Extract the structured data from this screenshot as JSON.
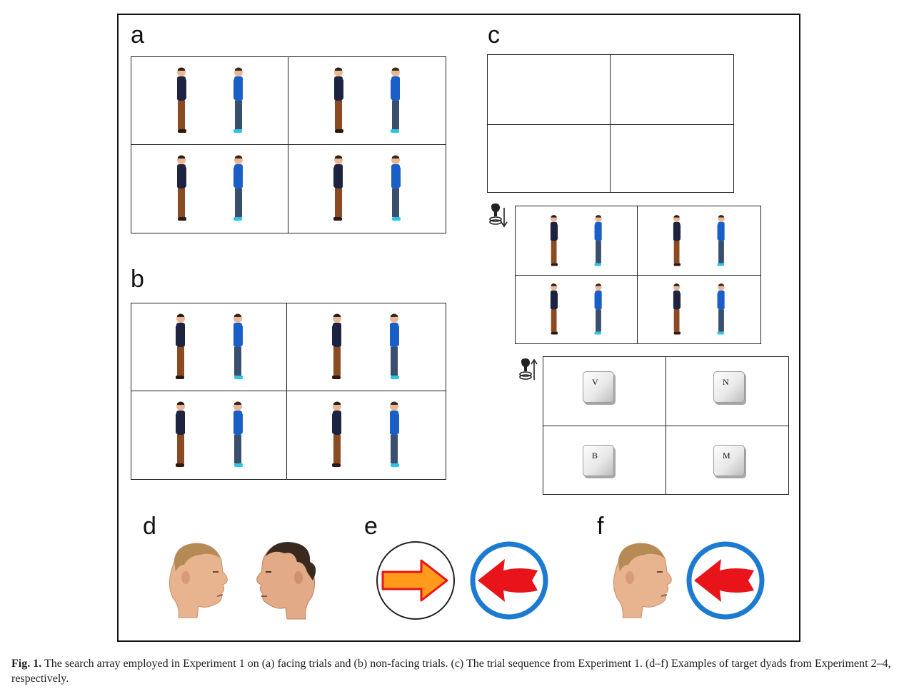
{
  "figure": {
    "panel_labels": {
      "a": "a",
      "b": "b",
      "c": "c",
      "d": "d",
      "e": "e",
      "f": "f"
    },
    "keys": [
      "V",
      "N",
      "B",
      "M"
    ],
    "colors": {
      "dark_shirt": "#1d2340",
      "brown_trousers": "#8a4a22",
      "blue_shirt": "#1a5fc8",
      "jeans": "#3a4f6e",
      "cyan_shoes": "#2ec4e6",
      "skin": "#e9b795",
      "arrow_orange": "#ff9a1a",
      "arrow_red": "#e8141a",
      "ring_blue": "#1c7bd0"
    }
  },
  "caption": {
    "label": "Fig. 1.",
    "text": "The search array employed in Experiment 1 on (a) facing trials and (b) non-facing trials. (c) The trial sequence from Experiment 1. (d–f) Examples of target dyads from Experiment 2–4, respectively."
  }
}
